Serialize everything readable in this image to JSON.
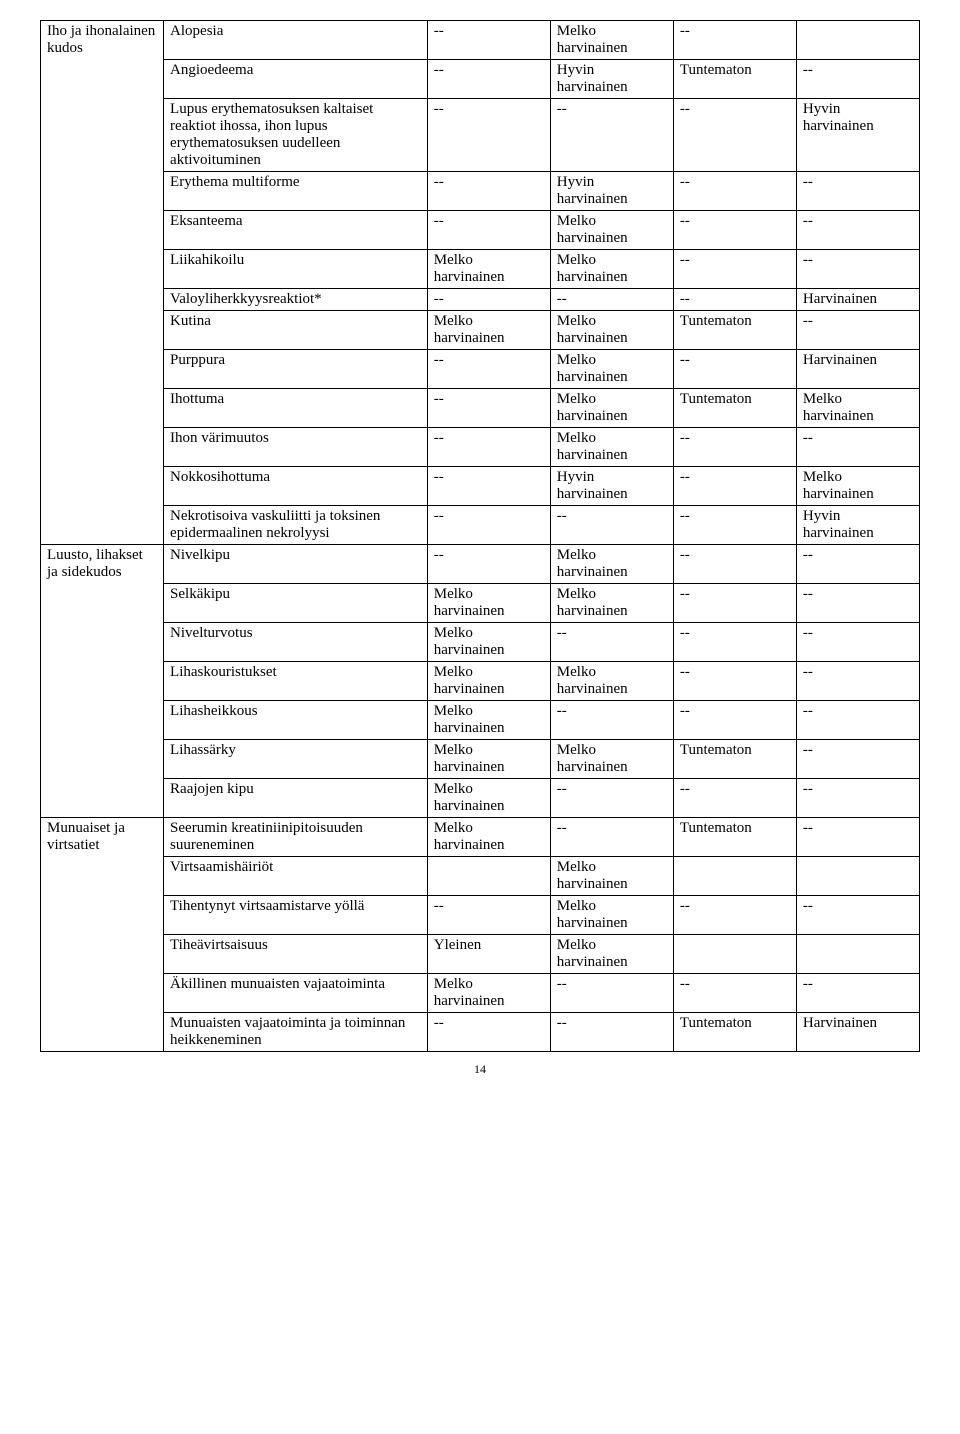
{
  "table": {
    "sections": [
      {
        "category": "Iho ja ihonalainen kudos",
        "rows": [
          {
            "cond": "Alopesia",
            "c1": "--",
            "c2": "Melko harvinainen",
            "c3": "--",
            "c4": ""
          },
          {
            "cond": "Angioedeema",
            "c1": "--",
            "c2": "Hyvin harvinainen",
            "c3": "Tuntematon",
            "c4": "--"
          },
          {
            "cond": "Lupus erythematosuksen kaltaiset reaktiot ihossa, ihon lupus erythematosuksen uudelleen aktivoituminen",
            "c1": "--",
            "c2": "--",
            "c3": "--",
            "c4": "Hyvin harvinainen"
          },
          {
            "cond": "Erythema multiforme",
            "c1": "--",
            "c2": "Hyvin harvinainen",
            "c3": "--",
            "c4": "--"
          },
          {
            "cond": "Eksanteema",
            "c1": "--",
            "c2": "Melko harvinainen",
            "c3": "--",
            "c4": "--"
          },
          {
            "cond": "Liikahikoilu",
            "c1": "Melko harvinainen",
            "c2": "Melko harvinainen",
            "c3": "--",
            "c4": "--"
          },
          {
            "cond": "Valoyliherkkyysreaktiot*",
            "c1": "--",
            "c2": "--",
            "c3": "--",
            "c4": "Harvinainen"
          },
          {
            "cond": "Kutina",
            "c1": "Melko harvinainen",
            "c2": "Melko harvinainen",
            "c3": "Tuntematon",
            "c4": "--"
          },
          {
            "cond": "Purppura",
            "c1": "--",
            "c2": "Melko harvinainen",
            "c3": "--",
            "c4": "Harvinainen"
          },
          {
            "cond": "Ihottuma",
            "c1": "--",
            "c2": "Melko harvinainen",
            "c3": "Tuntematon",
            "c4": "Melko harvinainen"
          },
          {
            "cond": "Ihon värimuutos",
            "c1": "--",
            "c2": "Melko harvinainen",
            "c3": "--",
            "c4": "--"
          },
          {
            "cond": "Nokkosihottuma",
            "c1": "--",
            "c2": "Hyvin harvinainen",
            "c3": "--",
            "c4": "Melko harvinainen"
          },
          {
            "cond": "Nekrotisoiva vaskuliitti ja toksinen epidermaalinen nekrolyysi",
            "c1": "--",
            "c2": "--",
            "c3": "--",
            "c4": "Hyvin harvinainen"
          }
        ]
      },
      {
        "category": "Luusto, lihakset ja sidekudos",
        "rows": [
          {
            "cond": "Nivelkipu",
            "c1": "--",
            "c2": "Melko harvinainen",
            "c3": "--",
            "c4": "--"
          },
          {
            "cond": "Selkäkipu",
            "c1": "Melko harvinainen",
            "c2": "Melko harvinainen",
            "c3": "--",
            "c4": "--"
          },
          {
            "cond": "Nivelturvotus",
            "c1": "Melko harvinainen",
            "c2": "--",
            "c3": "--",
            "c4": "--"
          },
          {
            "cond": "Lihaskouristukset",
            "c1": "Melko harvinainen",
            "c2": "Melko harvinainen",
            "c3": "--",
            "c4": "--"
          },
          {
            "cond": "Lihasheikkous",
            "c1": "Melko harvinainen",
            "c2": "--",
            "c3": "--",
            "c4": "--"
          },
          {
            "cond": "Lihassärky",
            "c1": "Melko harvinainen",
            "c2": "Melko harvinainen",
            "c3": "Tuntematon",
            "c4": "--"
          },
          {
            "cond": "Raajojen kipu",
            "c1": "Melko harvinainen",
            "c2": "--",
            "c3": "--",
            "c4": "--"
          }
        ]
      },
      {
        "category": "Munuaiset ja virtsatiet",
        "rows": [
          {
            "cond": "Seerumin kreatiniinipitoisuuden suureneminen",
            "c1": "Melko harvinainen",
            "c2": "--",
            "c3": "Tuntematon",
            "c4": "--"
          },
          {
            "cond": "Virtsaamishäiriöt",
            "c1": "",
            "c2": "Melko harvinainen",
            "c3": "",
            "c4": ""
          },
          {
            "cond": "Tihentynyt virtsaamistarve yöllä",
            "c1": "--",
            "c2": "Melko harvinainen",
            "c3": "--",
            "c4": "--"
          },
          {
            "cond": "Tiheävirtsaisuus",
            "c1": "Yleinen",
            "c2": "Melko harvinainen",
            "c3": "",
            "c4": ""
          },
          {
            "cond": "Äkillinen munuaisten vajaatoiminta",
            "c1": "Melko harvinainen",
            "c2": "--",
            "c3": "--",
            "c4": "--"
          },
          {
            "cond": "Munuaisten vajaatoiminta ja toiminnan heikkeneminen",
            "c1": "--",
            "c2": "--",
            "c3": "Tuntematon",
            "c4": "Harvinainen"
          }
        ]
      }
    ]
  },
  "pageNumber": "14"
}
